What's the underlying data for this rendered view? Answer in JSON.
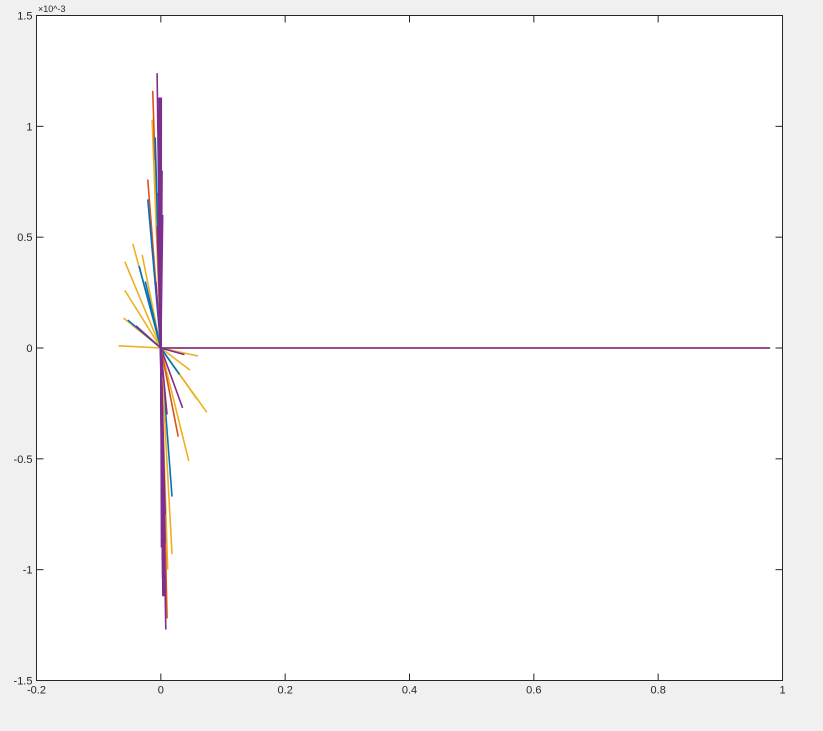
{
  "chart_data": {
    "type": "line",
    "title": "",
    "xlabel": "",
    "ylabel": "",
    "xlim": [
      -0.2,
      1
    ],
    "ylim": [
      -1.5,
      1.5
    ],
    "y_exponent_label": "×10^-3",
    "y_exponent": "-3",
    "xticks": [
      "-0.2",
      "0",
      "0.2",
      "0.4",
      "0.6",
      "0.8",
      "1"
    ],
    "xtick_values": [
      -0.2,
      0,
      0.2,
      0.4,
      0.6,
      0.8,
      1
    ],
    "yticks": [
      "-1.5",
      "-1",
      "-0.5",
      "0",
      "0.5",
      "1",
      "1.5"
    ],
    "ytick_values": [
      -1.5,
      -1,
      -0.5,
      0,
      0.5,
      1,
      1.5
    ],
    "grid": false,
    "legend": "none",
    "description_of_series": "line segments from origin (0,0) to endpoints [x, y×1e-3]",
    "colors": {
      "blue": "#0072BD",
      "orange": "#D95319",
      "yellow": "#EDB120",
      "purple": "#7E2F8E"
    },
    "rays": [
      {
        "color": "orange",
        "end": [
          0.98,
          0.0
        ]
      },
      {
        "color": "yellow",
        "end": [
          -0.045,
          0.47
        ]
      },
      {
        "color": "yellow",
        "end": [
          -0.058,
          0.39
        ]
      },
      {
        "color": "yellow",
        "end": [
          -0.058,
          0.26
        ]
      },
      {
        "color": "yellow",
        "end": [
          -0.06,
          0.135
        ]
      },
      {
        "color": "yellow",
        "end": [
          -0.068,
          0.01
        ]
      },
      {
        "color": "blue",
        "end": [
          -0.053,
          0.126
        ]
      },
      {
        "color": "blue",
        "end": [
          -0.035,
          0.37
        ]
      },
      {
        "color": "yellow",
        "end": [
          -0.03,
          0.42
        ]
      },
      {
        "color": "purple",
        "end": [
          -0.04,
          0.1
        ]
      },
      {
        "color": "blue",
        "end": [
          -0.025,
          0.3
        ]
      },
      {
        "color": "orange",
        "end": [
          -0.021,
          0.76
        ]
      },
      {
        "color": "blue",
        "end": [
          -0.021,
          0.67
        ]
      },
      {
        "color": "yellow",
        "end": [
          -0.014,
          1.03
        ]
      },
      {
        "color": "orange",
        "end": [
          -0.013,
          1.16
        ]
      },
      {
        "color": "yellow",
        "end": [
          -0.011,
          0.85
        ]
      },
      {
        "color": "blue",
        "end": [
          -0.009,
          0.95
        ]
      },
      {
        "color": "purple",
        "end": [
          -0.006,
          1.24
        ]
      },
      {
        "color": "yellow",
        "end": [
          0.074,
          -0.29
        ]
      },
      {
        "color": "yellow",
        "end": [
          0.058,
          -0.23
        ]
      },
      {
        "color": "yellow",
        "end": [
          0.06,
          -0.036
        ]
      },
      {
        "color": "yellow",
        "end": [
          0.047,
          -0.1
        ]
      },
      {
        "color": "yellow",
        "end": [
          0.045,
          -0.51
        ]
      },
      {
        "color": "purple",
        "end": [
          0.038,
          -0.03
        ]
      },
      {
        "color": "blue",
        "end": [
          0.03,
          -0.12
        ]
      },
      {
        "color": "purple",
        "end": [
          0.035,
          -0.27
        ]
      },
      {
        "color": "orange",
        "end": [
          0.028,
          -0.4
        ]
      },
      {
        "color": "blue",
        "end": [
          0.018,
          -0.67
        ]
      },
      {
        "color": "yellow",
        "end": [
          0.018,
          -0.93
        ]
      },
      {
        "color": "yellow",
        "end": [
          0.011,
          -1.0
        ]
      },
      {
        "color": "orange",
        "end": [
          0.01,
          -1.22
        ]
      },
      {
        "color": "purple",
        "end": [
          0.008,
          -1.27
        ]
      },
      {
        "color": "purple",
        "end": [
          0.006,
          -0.85
        ]
      },
      {
        "color": "purple",
        "end": [
          0.004,
          -0.6
        ]
      },
      {
        "color": "purple",
        "end": [
          0.005,
          -1.1
        ]
      },
      {
        "color": "purple",
        "end": [
          0.002,
          -0.4
        ]
      },
      {
        "color": "purple",
        "end": [
          -0.002,
          0.4
        ]
      },
      {
        "color": "purple",
        "end": [
          -0.004,
          0.7
        ]
      },
      {
        "color": "purple",
        "end": [
          -0.003,
          0.9
        ]
      },
      {
        "color": "purple",
        "end": [
          -0.001,
          1.1
        ]
      },
      {
        "color": "purple",
        "end": [
          0.0,
          1.0
        ]
      },
      {
        "color": "purple",
        "end": [
          0.002,
          0.8
        ]
      },
      {
        "color": "purple",
        "end": [
          0.003,
          0.6
        ]
      },
      {
        "color": "purple",
        "end": [
          0.001,
          -0.9
        ]
      },
      {
        "color": "purple",
        "end": [
          0.007,
          -0.75
        ]
      },
      {
        "color": "purple",
        "end": [
          -0.006,
          0.55
        ]
      },
      {
        "color": "purple",
        "end": [
          -0.008,
          0.3
        ]
      },
      {
        "color": "purple",
        "end": [
          0.01,
          -0.3
        ]
      },
      {
        "color": "purple",
        "end": [
          0.98,
          0.0
        ]
      }
    ]
  }
}
